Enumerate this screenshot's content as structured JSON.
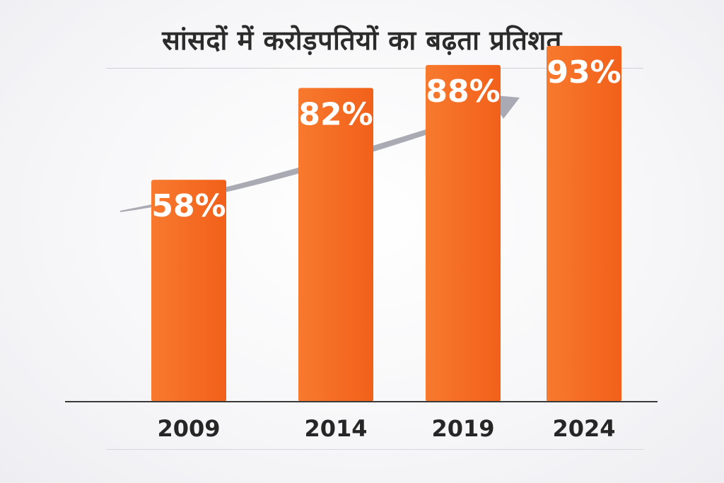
{
  "chart_data": {
    "type": "bar",
    "title": "सांसदों में करोड़पतियों का बढ़ता प्रतिशत",
    "categories": [
      "2009",
      "2014",
      "2019",
      "2024"
    ],
    "values": [
      58,
      82,
      88,
      93
    ],
    "data_labels": [
      "58%",
      "82%",
      "88%",
      "93%"
    ],
    "unit": "%",
    "ylim": [
      0,
      100
    ],
    "grid": false,
    "legend": "none",
    "trend_arrow": "up",
    "bar_color": "#f2601a",
    "bar_color_light": "#f77a2e",
    "arrow_color": "#a9aab3",
    "axis_color": "#3a3a3a"
  }
}
